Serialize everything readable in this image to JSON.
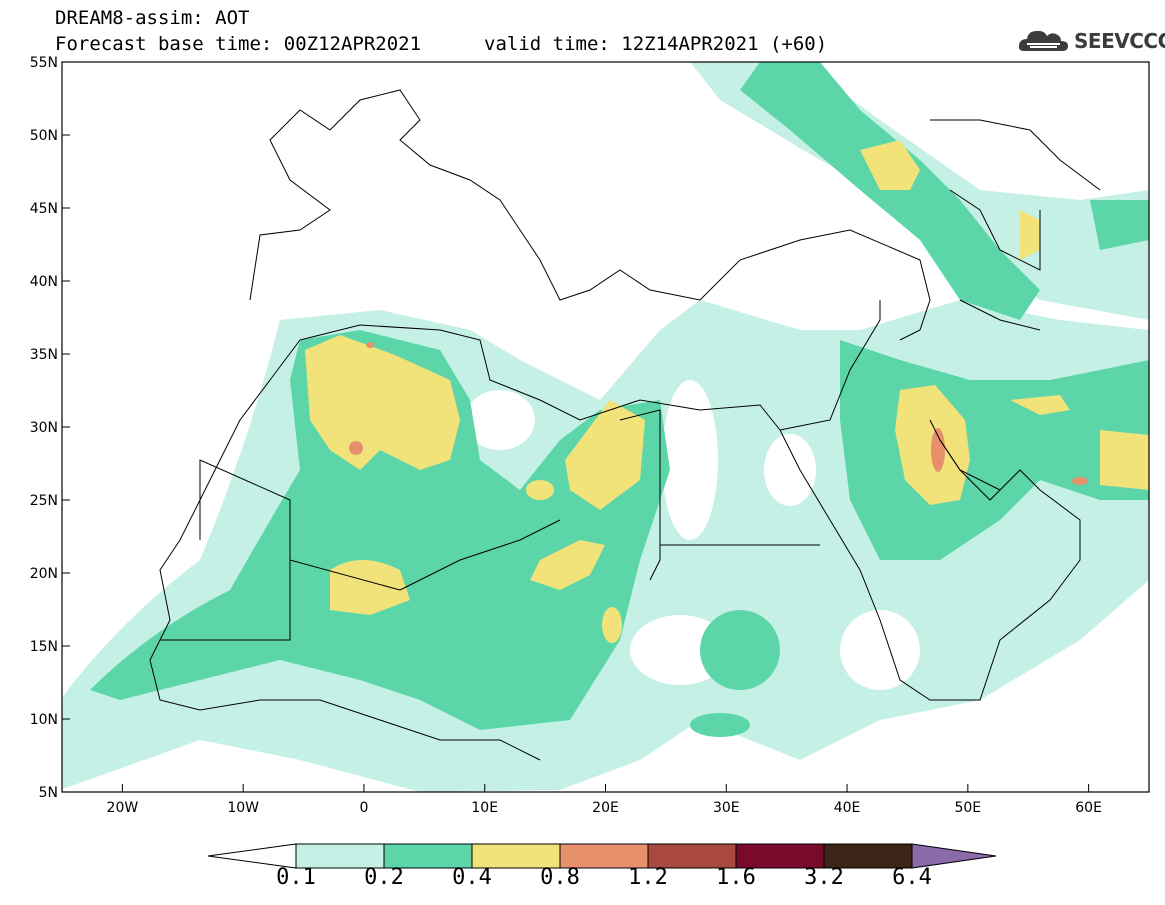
{
  "header": {
    "title_line1": "DREAM8-assim: AOT",
    "title_line2": "Forecast base time: 00Z12APR2021",
    "valid_time": "valid time: 12Z14APR2021 (+60)",
    "logo_text": "SEEVCCC"
  },
  "map": {
    "lon_range": [
      -25,
      65
    ],
    "lat_range": [
      5,
      55
    ],
    "lat_ticks": [
      {
        "value": 55,
        "label": "55N"
      },
      {
        "value": 50,
        "label": "50N"
      },
      {
        "value": 45,
        "label": "45N"
      },
      {
        "value": 40,
        "label": "40N"
      },
      {
        "value": 35,
        "label": "35N"
      },
      {
        "value": 30,
        "label": "30N"
      },
      {
        "value": 25,
        "label": "25N"
      },
      {
        "value": 20,
        "label": "20N"
      },
      {
        "value": 15,
        "label": "15N"
      },
      {
        "value": 10,
        "label": "10N"
      },
      {
        "value": 5,
        "label": "5N"
      }
    ],
    "lon_ticks": [
      {
        "value": -20,
        "label": "20W"
      },
      {
        "value": -10,
        "label": "10W"
      },
      {
        "value": 0,
        "label": "0"
      },
      {
        "value": 10,
        "label": "10E"
      },
      {
        "value": 20,
        "label": "20E"
      },
      {
        "value": 30,
        "label": "30E"
      },
      {
        "value": 40,
        "label": "40E"
      },
      {
        "value": 50,
        "label": "50E"
      },
      {
        "value": 60,
        "label": "60E"
      }
    ]
  },
  "colorbar": {
    "levels": [
      "0.1",
      "0.2",
      "0.4",
      "0.8",
      "1.2",
      "1.6",
      "3.2",
      "6.4"
    ],
    "colors": [
      "#ffffff",
      "#c4f0e6",
      "#5cd6a8",
      "#f2e27a",
      "#e6906c",
      "#a8483e",
      "#7a0a2a",
      "#3c2418",
      "#8a6aa8"
    ]
  }
}
